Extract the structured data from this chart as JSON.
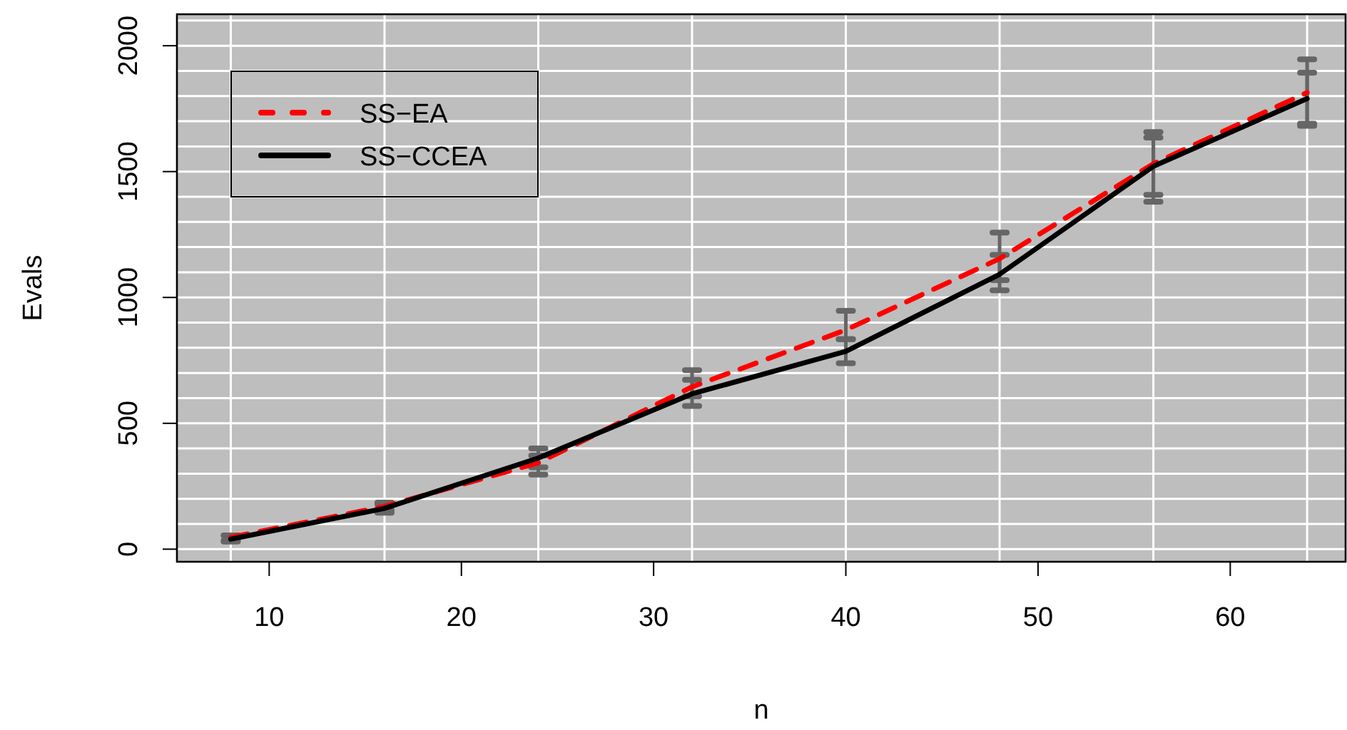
{
  "chart_data": {
    "type": "line",
    "xlabel": "n",
    "ylabel": "Evals",
    "x": [
      8,
      16,
      24,
      32,
      40,
      48,
      56,
      64
    ],
    "xlim": [
      5.2,
      66
    ],
    "xticks": [
      10,
      20,
      30,
      40,
      50,
      60
    ],
    "ylim": [
      -50,
      2125
    ],
    "yticks": [
      0,
      500,
      1000,
      1500,
      2000
    ],
    "grid": true,
    "legend": "top left",
    "marker": "none",
    "series": [
      {
        "name": "SS−EA",
        "color": "#ff0000",
        "line_style": "dashed",
        "values": [
          47,
          170,
          343,
          645,
          871,
          1154,
          1531,
          1814
        ],
        "errors": [
          [
            35,
            55
          ],
          [
            155,
            185
          ],
          [
            325,
            400
          ],
          [
            607,
            711
          ],
          [
            834,
            947
          ],
          [
            1069,
            1258
          ],
          [
            1408,
            1657
          ],
          [
            1690,
            1946
          ]
        ]
      },
      {
        "name": "SS−CCEA",
        "color": "#000000",
        "line_style": "solid",
        "values": [
          40,
          162,
          362,
          617,
          786,
          1092,
          1521,
          1790
        ],
        "errors": [
          [
            30,
            55
          ],
          [
            145,
            178
          ],
          [
            296,
            372
          ],
          [
            569,
            673
          ],
          [
            739,
            834
          ],
          [
            1028,
            1169
          ],
          [
            1380,
            1635
          ],
          [
            1682,
            1893
          ]
        ]
      }
    ]
  }
}
